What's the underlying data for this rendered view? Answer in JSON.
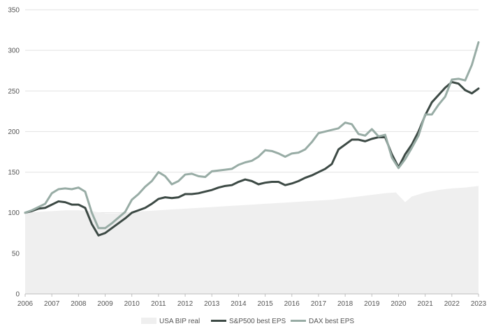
{
  "chart_data": {
    "type": "line",
    "title": "",
    "xlabel": "",
    "ylabel": "",
    "xlim": [
      2006,
      2023
    ],
    "ylim": [
      0,
      350
    ],
    "y_ticks": [
      0,
      50,
      100,
      150,
      200,
      250,
      300,
      350
    ],
    "x_ticks": [
      2006,
      2007,
      2008,
      2009,
      2010,
      2011,
      2012,
      2013,
      2014,
      2015,
      2016,
      2017,
      2018,
      2019,
      2020,
      2021,
      2022,
      2023
    ],
    "x_tick_labels": [
      "2006",
      "2007",
      "2008",
      "2009",
      "2010",
      "2011",
      "2012",
      "2013",
      "2014",
      "2015",
      "2016",
      "2017",
      "2018",
      "2019",
      "2020",
      "2021",
      "2022",
      "2023"
    ],
    "y_tick_labels": [
      "0",
      "50",
      "100",
      "150",
      "200",
      "250",
      "300",
      "350"
    ],
    "grid": "horizontal",
    "legend_position": "bottom",
    "series": [
      {
        "name": "USA BIP real",
        "style": "area",
        "color": "#efefef",
        "x": [
          2006,
          2006.5,
          2007,
          2007.5,
          2008,
          2008.5,
          2009,
          2009.5,
          2010,
          2010.5,
          2011,
          2011.5,
          2012,
          2012.5,
          2013,
          2013.5,
          2014,
          2014.5,
          2015,
          2015.5,
          2016,
          2016.5,
          2017,
          2017.5,
          2018,
          2018.5,
          2019,
          2019.5,
          2019.9,
          2020.25,
          2020.5,
          2021,
          2021.5,
          2022,
          2022.5,
          2023
        ],
        "y": [
          100,
          101,
          102,
          103,
          103,
          102,
          99,
          99,
          101,
          102,
          103,
          104,
          105,
          106,
          107,
          108,
          109,
          110,
          111,
          112,
          113,
          114,
          115,
          116,
          118,
          120,
          122,
          124,
          125,
          113,
          120,
          125,
          128,
          130,
          131,
          133
        ]
      },
      {
        "name": "S&P500 best EPS",
        "style": "line",
        "color": "#3d4a45",
        "x": [
          2006,
          2006.25,
          2006.5,
          2006.75,
          2007,
          2007.25,
          2007.5,
          2007.75,
          2008,
          2008.25,
          2008.5,
          2008.75,
          2009,
          2009.25,
          2009.5,
          2009.75,
          2010,
          2010.25,
          2010.5,
          2010.75,
          2011,
          2011.25,
          2011.5,
          2011.75,
          2012,
          2012.25,
          2012.5,
          2012.75,
          2013,
          2013.25,
          2013.5,
          2013.75,
          2014,
          2014.25,
          2014.5,
          2014.75,
          2015,
          2015.25,
          2015.5,
          2015.75,
          2016,
          2016.25,
          2016.5,
          2016.75,
          2017,
          2017.25,
          2017.5,
          2017.75,
          2018,
          2018.25,
          2018.5,
          2018.75,
          2019,
          2019.25,
          2019.5,
          2019.75,
          2020,
          2020.25,
          2020.5,
          2020.75,
          2021,
          2021.25,
          2021.5,
          2021.75,
          2022,
          2022.25,
          2022.5,
          2022.75,
          2023
        ],
        "y": [
          100,
          102,
          105,
          106,
          110,
          114,
          113,
          110,
          110,
          106,
          86,
          72,
          75,
          81,
          87,
          93,
          100,
          103,
          106,
          111,
          117,
          119,
          118,
          119,
          123,
          123,
          124,
          126,
          128,
          131,
          133,
          134,
          138,
          141,
          139,
          135,
          137,
          138,
          138,
          134,
          136,
          139,
          143,
          146,
          150,
          154,
          160,
          178,
          184,
          190,
          190,
          188,
          191,
          193,
          193,
          172,
          156,
          172,
          184,
          200,
          220,
          236,
          245,
          254,
          261,
          259,
          251,
          247,
          253
        ]
      },
      {
        "name": "DAX best EPS",
        "style": "line",
        "color": "#98aca5",
        "x": [
          2006,
          2006.25,
          2006.5,
          2006.75,
          2007,
          2007.25,
          2007.5,
          2007.75,
          2008,
          2008.25,
          2008.5,
          2008.75,
          2009,
          2009.25,
          2009.5,
          2009.75,
          2010,
          2010.25,
          2010.5,
          2010.75,
          2011,
          2011.25,
          2011.5,
          2011.75,
          2012,
          2012.25,
          2012.5,
          2012.75,
          2013,
          2013.25,
          2013.5,
          2013.75,
          2014,
          2014.25,
          2014.5,
          2014.75,
          2015,
          2015.25,
          2015.5,
          2015.75,
          2016,
          2016.25,
          2016.5,
          2016.75,
          2017,
          2017.25,
          2017.5,
          2017.75,
          2018,
          2018.25,
          2018.5,
          2018.75,
          2019,
          2019.25,
          2019.5,
          2019.75,
          2020,
          2020.25,
          2020.5,
          2020.75,
          2021,
          2021.25,
          2021.5,
          2021.75,
          2022,
          2022.25,
          2022.5,
          2022.75,
          2023
        ],
        "y": [
          100,
          103,
          107,
          111,
          124,
          129,
          130,
          129,
          131,
          126,
          100,
          81,
          81,
          87,
          94,
          101,
          116,
          123,
          132,
          139,
          150,
          145,
          135,
          139,
          147,
          148,
          145,
          144,
          151,
          152,
          153,
          154,
          159,
          162,
          164,
          169,
          177,
          176,
          173,
          169,
          173,
          174,
          178,
          187,
          198,
          200,
          202,
          204,
          211,
          209,
          197,
          195,
          203,
          194,
          196,
          168,
          155,
          166,
          180,
          195,
          221,
          221,
          233,
          243,
          264,
          265,
          263,
          282,
          310
        ]
      }
    ]
  }
}
